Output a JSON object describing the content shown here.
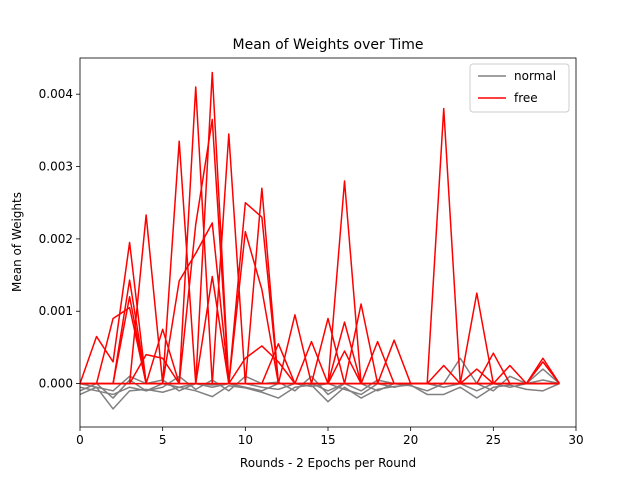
{
  "chart_data": {
    "type": "line",
    "title": "Mean of Weights over Time",
    "xlabel": "Rounds - 2 Epochs per Round",
    "ylabel": "Mean of Weights",
    "xlim": [
      0,
      30
    ],
    "ylim": [
      -0.0006,
      0.0045
    ],
    "xticks": [
      0,
      5,
      10,
      15,
      20,
      25,
      30
    ],
    "xtick_labels": [
      "0",
      "5",
      "10",
      "15",
      "20",
      "25",
      "30"
    ],
    "yticks": [
      0,
      0.001,
      0.002,
      0.003,
      0.004
    ],
    "ytick_labels": [
      "0.000",
      "0.001",
      "0.002",
      "0.003",
      "0.004"
    ],
    "grid": false,
    "legend_position": "top-right",
    "legend": [
      {
        "label": "normal",
        "color": "#808080"
      },
      {
        "label": "free",
        "color": "#ff0000"
      }
    ],
    "x": [
      0,
      1,
      2,
      3,
      4,
      5,
      6,
      7,
      8,
      9,
      10,
      11,
      12,
      13,
      14,
      15,
      16,
      17,
      18,
      19,
      20,
      21,
      22,
      23,
      24,
      25,
      26,
      27,
      28,
      29
    ],
    "series": [
      {
        "group": "normal",
        "color": "#808080",
        "values": [
          -0.00015,
          -5e-05,
          -0.00035,
          -0.0001,
          -8e-05,
          -0.00012,
          -5e-05,
          -0.0001,
          -0.00018,
          -3e-05,
          -6e-05,
          -0.00012,
          -0.0002,
          -5e-05,
          -2e-05,
          -0.00025,
          -5e-05,
          -0.0002,
          -8e-05,
          -4e-05,
          -2e-05,
          -0.00015,
          -0.00015,
          -5e-05,
          -0.0002,
          -5e-05,
          -2e-05,
          -8e-05,
          -0.0001,
          0.0
        ]
      },
      {
        "group": "normal",
        "color": "#808080",
        "values": [
          -0.0001,
          0.0,
          -0.0002,
          5e-05,
          -0.0001,
          -5e-05,
          0.0001,
          -8e-05,
          5e-05,
          -0.0001,
          0.0001,
          0.0,
          2e-05,
          -0.0001,
          0.0001,
          -0.00015,
          0.0,
          -0.0001,
          5e-05,
          0.0,
          -3e-05,
          -0.0001,
          0.0,
          0.00035,
          0.0,
          -0.0001,
          0.0001,
          0.0,
          5e-05,
          0.0
        ]
      },
      {
        "group": "normal",
        "color": "#808080",
        "values": [
          0.0,
          -5e-05,
          -0.0001,
          0.0001,
          0.0,
          5e-05,
          -0.0001,
          0.0,
          -5e-05,
          0.0,
          -5e-05,
          -0.0001,
          0.0,
          0.0,
          0.0,
          -0.0001,
          0.0,
          0.0,
          -0.0001,
          0.0,
          0.0,
          0.0,
          0.0,
          0.0,
          -0.0001,
          0.0,
          0.0,
          0.0,
          0.0002,
          0.0
        ]
      },
      {
        "group": "normal",
        "color": "#808080",
        "values": [
          -5e-05,
          -0.0001,
          -0.00015,
          -5e-05,
          -0.0001,
          0.0,
          -5e-05,
          0.0,
          -2e-05,
          0.0,
          0.0,
          -5e-05,
          -8e-05,
          0.0,
          -4e-05,
          0.0,
          -8e-05,
          -0.00015,
          0.0,
          -5e-05,
          0.0,
          0.0,
          -5e-05,
          0.0,
          0.0,
          0.0,
          -5e-05,
          0.0,
          0.0,
          0.0
        ]
      },
      {
        "group": "free",
        "color": "#ff0000",
        "values": [
          0.0,
          0.00065,
          0.0003,
          0.00195,
          0.0,
          0.0,
          0.0,
          0.0041,
          0.0,
          0.0,
          0.0,
          0.0,
          0.0,
          0.0,
          0.0,
          0.0,
          0.0028,
          0.0,
          0.0,
          0.0,
          0.0,
          0.0,
          0.0038,
          0.0,
          0.0,
          0.0,
          0.0,
          0.0,
          0.0,
          0.0
        ]
      },
      {
        "group": "free",
        "color": "#ff0000",
        "values": [
          0.0,
          0.0,
          0.0009,
          0.00105,
          0.0,
          0.00075,
          0.0,
          0.0,
          0.0043,
          0.0,
          0.0,
          0.0,
          0.0,
          0.00095,
          0.0,
          0.0,
          0.0,
          0.0011,
          0.0,
          0.0006,
          0.0,
          0.0,
          0.0,
          0.0,
          0.00125,
          0.0,
          0.0,
          0.0,
          0.0,
          0.0
        ]
      },
      {
        "group": "free",
        "color": "#ff0000",
        "values": [
          0.0,
          0.0,
          0.0,
          0.0012,
          0.0,
          0.0,
          0.00335,
          0.0,
          0.0,
          0.00345,
          0.0,
          0.0,
          0.00055,
          0.0,
          0.0,
          0.0009,
          0.0,
          0.0,
          0.0,
          0.0,
          0.0,
          0.0,
          0.0,
          0.0,
          0.0,
          0.00042,
          0.0,
          0.0,
          0.0003,
          0.0
        ]
      },
      {
        "group": "free",
        "color": "#ff0000",
        "values": [
          0.0,
          0.0,
          0.0,
          0.0,
          0.00233,
          0.0,
          0.0,
          0.0022,
          0.00365,
          0.0,
          0.0,
          0.0027,
          0.0,
          0.0,
          0.0,
          0.0,
          0.00085,
          0.0,
          0.00058,
          0.0,
          0.0,
          0.0,
          0.0,
          0.0,
          0.0,
          0.0,
          0.00025,
          0.0,
          0.0,
          0.0
        ]
      },
      {
        "group": "free",
        "color": "#ff0000",
        "values": [
          0.0,
          0.0,
          0.0,
          0.00143,
          0.0,
          0.0,
          0.00142,
          0.0018,
          0.00222,
          0.0,
          0.0025,
          0.0023,
          0.0,
          0.0,
          0.0,
          0.0,
          0.0,
          0.0,
          0.0,
          0.0,
          0.0,
          0.0,
          0.0,
          0.0,
          0.0,
          0.0,
          0.0,
          0.0,
          0.00035,
          0.0
        ]
      },
      {
        "group": "free",
        "color": "#ff0000",
        "values": [
          0.0,
          0.0,
          0.0,
          0.0,
          0.0004,
          0.00035,
          0.0,
          0.0,
          0.00148,
          0.0,
          0.0021,
          0.0013,
          0.0,
          0.0,
          0.0,
          0.0,
          0.00045,
          0.0,
          0.0,
          0.0,
          0.0,
          0.0,
          0.0,
          0.0,
          0.0,
          0.0,
          0.0,
          0.0,
          0.0,
          0.0
        ]
      },
      {
        "group": "free",
        "color": "#ff0000",
        "values": [
          0.0,
          0.0,
          0.0,
          0.0,
          0.0,
          0.0,
          0.0,
          0.0,
          0.0,
          0.0,
          0.00035,
          0.00052,
          0.0003,
          0.0,
          0.00058,
          0.0,
          0.0,
          0.0,
          0.0,
          0.0,
          0.0,
          0.0,
          0.00025,
          0.0,
          0.0002,
          0.0,
          0.0,
          0.0,
          0.0,
          0.0
        ]
      }
    ]
  }
}
